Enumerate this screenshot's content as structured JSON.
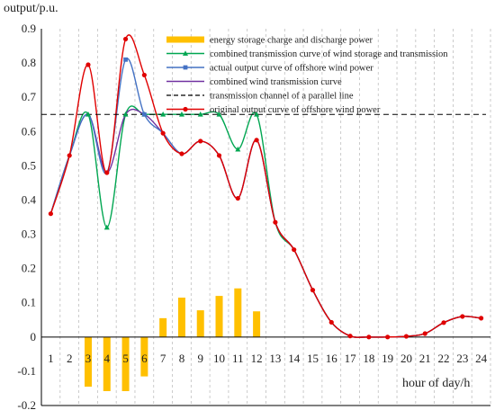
{
  "chart_data": {
    "type": "line",
    "ylabel": "output/p.u.",
    "xlabel": "hour of day/h",
    "ylim": [
      -0.2,
      0.9
    ],
    "yticks": [
      -0.2,
      -0.1,
      0,
      0.1,
      0.2,
      0.3,
      0.4,
      0.5,
      0.6,
      0.7,
      0.8,
      0.9
    ],
    "ytick_labels": [
      "-0.2",
      "-0.1",
      "0",
      "0.1",
      "0.2",
      "0.3",
      "0.4",
      "0.5",
      "0.6",
      "0.7",
      "0.8",
      "0.9"
    ],
    "x": [
      1,
      2,
      3,
      4,
      5,
      6,
      7,
      8,
      9,
      10,
      11,
      12,
      13,
      14,
      15,
      16,
      17,
      18,
      19,
      20,
      21,
      22,
      23,
      24
    ],
    "xtick_labels": [
      "1",
      "2",
      "3",
      "4",
      "5",
      "6",
      "7",
      "8",
      "9",
      "10",
      "11",
      "12",
      "13",
      "14",
      "15",
      "16",
      "17",
      "18",
      "19",
      "20",
      "21",
      "22",
      "23",
      "24"
    ],
    "grid": "vertical dashed",
    "legend_position": "top-right",
    "series": [
      {
        "name": "energy storage charge and discharge power",
        "kind": "bar",
        "color": "#FFC000",
        "values": [
          0,
          0,
          -0.145,
          -0.158,
          -0.158,
          -0.115,
          0.055,
          0.115,
          0.078,
          0.12,
          0.142,
          0.075,
          0,
          0,
          0,
          0,
          0,
          0,
          0,
          0,
          0,
          0,
          0,
          0
        ]
      },
      {
        "name": "combined transmission curve of wind storage and transmission",
        "kind": "line",
        "color": "#00A651",
        "marker": "triangle",
        "values": [
          0.36,
          0.53,
          0.65,
          0.32,
          0.65,
          0.65,
          0.65,
          0.65,
          0.65,
          0.65,
          0.548,
          0.65,
          0.335,
          0.255,
          0.137,
          0.043,
          0.003,
          0.0,
          0.0,
          0.002,
          0.01,
          0.042,
          0.06,
          0.055
        ]
      },
      {
        "name": "actual output curve of offshore wind power",
        "kind": "line",
        "color": "#4472C4",
        "marker": "square",
        "values": [
          0.36,
          0.53,
          0.65,
          0.48,
          0.81,
          0.65,
          0.595,
          0.535,
          0.572,
          0.53,
          0.405,
          0.575,
          0.335,
          0.255,
          0.137,
          0.043,
          0.003,
          0.0,
          0.0,
          0.002,
          0.01,
          0.042,
          0.06,
          0.055
        ]
      },
      {
        "name": "combined wind transmission curve",
        "kind": "line",
        "color": "#7030A0",
        "marker": "none",
        "values": [
          0.36,
          0.53,
          0.65,
          0.48,
          0.65,
          0.65,
          0.595,
          0.535,
          0.572,
          0.53,
          0.405,
          0.575,
          0.335,
          0.255,
          0.137,
          0.043,
          0.003,
          0.0,
          0.0,
          0.002,
          0.01,
          0.042,
          0.06,
          0.055
        ]
      },
      {
        "name": "transmission channel of a parallel line",
        "kind": "hline",
        "color": "#000000",
        "dash": true,
        "value": 0.65
      },
      {
        "name": "original output curve of offshore wind power",
        "kind": "line",
        "color": "#E00000",
        "marker": "circle",
        "values": [
          0.36,
          0.53,
          0.795,
          0.48,
          0.87,
          0.765,
          0.595,
          0.535,
          0.572,
          0.53,
          0.405,
          0.575,
          0.335,
          0.255,
          0.137,
          0.043,
          0.003,
          0.0,
          0.0,
          0.002,
          0.01,
          0.042,
          0.06,
          0.055
        ]
      }
    ]
  }
}
